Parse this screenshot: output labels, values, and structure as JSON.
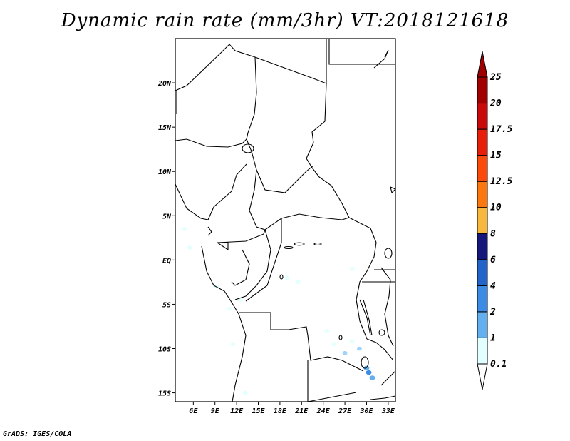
{
  "title": "Dynamic rain rate (mm/3hr) VT:2018121618",
  "credit": "GrADS: IGES/COLA",
  "map": {
    "projection": "latlon",
    "lon_range": [
      3.5,
      34
    ],
    "lat_range": [
      -16,
      25
    ],
    "lat_ticks": [
      "20N",
      "15N",
      "10N",
      "5N",
      "EQ",
      "5S",
      "10S",
      "15S"
    ],
    "lat_tick_values": [
      20,
      15,
      10,
      5,
      0,
      -5,
      -10,
      -15
    ],
    "lon_ticks": [
      "6E",
      "9E",
      "12E",
      "15E",
      "18E",
      "21E",
      "24E",
      "27E",
      "30E",
      "33E"
    ],
    "lon_tick_values": [
      6,
      9,
      12,
      15,
      18,
      21,
      24,
      27,
      30,
      33
    ],
    "rain_patches": [
      {
        "lon": 4.8,
        "lat": 3.5,
        "level": 0
      },
      {
        "lon": 5.5,
        "lat": 1.4,
        "level": 0
      },
      {
        "lon": 9.2,
        "lat": -3.0,
        "level": 0
      },
      {
        "lon": 11.0,
        "lat": -5.5,
        "level": 0
      },
      {
        "lon": 12.5,
        "lat": -4.5,
        "level": 0
      },
      {
        "lon": 11.5,
        "lat": -9.5,
        "level": 0
      },
      {
        "lon": 13.2,
        "lat": -15.0,
        "level": 0
      },
      {
        "lon": 20.5,
        "lat": -2.5,
        "level": 0
      },
      {
        "lon": 28.0,
        "lat": -1.0,
        "level": 0
      },
      {
        "lon": 24.5,
        "lat": -8.0,
        "level": 0
      },
      {
        "lon": 25.5,
        "lat": -9.5,
        "level": 0
      },
      {
        "lon": 28.0,
        "lat": -9.2,
        "level": 0
      },
      {
        "lon": 27.0,
        "lat": -10.5,
        "level": 1
      },
      {
        "lon": 29.0,
        "lat": -10.0,
        "level": 1
      },
      {
        "lon": 30.3,
        "lat": -12.7,
        "level": 3
      },
      {
        "lon": 30.0,
        "lat": -12.2,
        "level": 2
      },
      {
        "lon": 30.8,
        "lat": -13.3,
        "level": 2
      },
      {
        "lon": 19.0,
        "lat": -2.0,
        "level": 0
      }
    ]
  },
  "colorbar": {
    "labels": [
      "0.1",
      "1",
      "2",
      "4",
      "6",
      "8",
      "10",
      "12.5",
      "15",
      "17.5",
      "20",
      "25"
    ],
    "colors": [
      "#e0fffe",
      "#a0d2fa",
      "#64afee",
      "#3c8ce6",
      "#2364c8",
      "#15187a",
      "#f7b840",
      "#fa780f",
      "#fa4b0c",
      "#e61e0a",
      "#c80a0a",
      "#a00000",
      "#e0fffe"
    ]
  }
}
